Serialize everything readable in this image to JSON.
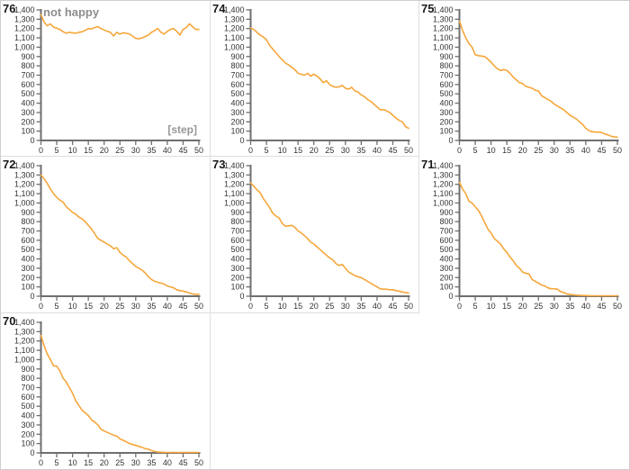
{
  "window": {
    "background": "#ffffff",
    "border_color": "#cfcfcf",
    "divider_color": "#dedede"
  },
  "style": {
    "line_color": "#f6a63b",
    "axis_color": "#6f6f6f",
    "tick_label_color": "#333333",
    "run_label_color": "#1a1a1a",
    "muted_label_color": "#8d8d8d"
  },
  "axes": {
    "xlim": [
      0,
      50
    ],
    "x_tick_step": 5,
    "ylim": [
      0,
      1400
    ],
    "y_tick_step": 100,
    "grid": "off",
    "legend": "none"
  },
  "chart_data": [
    {
      "type": "line",
      "title": "76",
      "annotation": "not happy",
      "x_axis_label": "[step]",
      "x_start": 0,
      "x_end": 50,
      "values": [
        1350,
        1270,
        1230,
        1250,
        1215,
        1205,
        1190,
        1165,
        1150,
        1160,
        1155,
        1150,
        1160,
        1165,
        1180,
        1200,
        1195,
        1210,
        1220,
        1200,
        1185,
        1170,
        1160,
        1120,
        1160,
        1140,
        1155,
        1150,
        1140,
        1120,
        1095,
        1090,
        1100,
        1115,
        1130,
        1160,
        1180,
        1200,
        1160,
        1140,
        1170,
        1190,
        1200,
        1170,
        1130,
        1190,
        1210,
        1250,
        1220,
        1190,
        1190
      ]
    },
    {
      "type": "line",
      "title": "74",
      "x_start": 0,
      "x_end": 50,
      "values": [
        1205,
        1190,
        1160,
        1130,
        1110,
        1080,
        1020,
        980,
        940,
        900,
        865,
        830,
        810,
        785,
        760,
        720,
        710,
        700,
        720,
        690,
        710,
        690,
        660,
        620,
        640,
        600,
        580,
        570,
        575,
        590,
        560,
        550,
        570,
        530,
        520,
        490,
        470,
        440,
        420,
        390,
        360,
        330,
        330,
        320,
        300,
        270,
        240,
        215,
        200,
        150,
        130
      ]
    },
    {
      "type": "line",
      "title": "75",
      "x_start": 0,
      "x_end": 50,
      "values": [
        1280,
        1180,
        1100,
        1040,
        1000,
        920,
        910,
        905,
        900,
        870,
        840,
        800,
        770,
        750,
        760,
        750,
        720,
        680,
        650,
        620,
        610,
        580,
        570,
        560,
        540,
        530,
        480,
        460,
        440,
        420,
        390,
        370,
        350,
        330,
        300,
        270,
        250,
        230,
        200,
        170,
        130,
        105,
        95,
        90,
        90,
        85,
        70,
        60,
        45,
        40,
        35
      ]
    },
    {
      "type": "line",
      "title": "72",
      "x_start": 0,
      "x_end": 50,
      "values": [
        1300,
        1260,
        1210,
        1150,
        1100,
        1060,
        1030,
        1010,
        960,
        930,
        900,
        880,
        850,
        830,
        800,
        760,
        720,
        670,
        620,
        600,
        580,
        560,
        540,
        510,
        520,
        470,
        440,
        420,
        380,
        350,
        320,
        300,
        280,
        250,
        210,
        180,
        160,
        150,
        140,
        130,
        110,
        100,
        90,
        70,
        60,
        55,
        45,
        35,
        25,
        20,
        20
      ]
    },
    {
      "type": "line",
      "title": "73",
      "x_start": 0,
      "x_end": 50,
      "values": [
        1215,
        1180,
        1140,
        1110,
        1050,
        1000,
        950,
        890,
        860,
        840,
        780,
        750,
        755,
        760,
        740,
        700,
        680,
        650,
        620,
        580,
        560,
        530,
        500,
        470,
        440,
        410,
        390,
        350,
        330,
        340,
        300,
        260,
        240,
        220,
        210,
        200,
        180,
        160,
        140,
        120,
        100,
        80,
        75,
        75,
        70,
        70,
        60,
        55,
        45,
        40,
        35
      ]
    },
    {
      "type": "line",
      "title": "71",
      "x_start": 0,
      "x_end": 50,
      "values": [
        1220,
        1150,
        1100,
        1020,
        1000,
        960,
        920,
        860,
        790,
        720,
        680,
        620,
        590,
        560,
        510,
        470,
        420,
        380,
        330,
        300,
        260,
        245,
        240,
        180,
        160,
        140,
        120,
        110,
        90,
        80,
        80,
        75,
        50,
        40,
        25,
        20,
        15,
        12,
        10,
        8,
        8,
        6,
        5,
        5,
        5,
        5,
        5,
        5,
        5,
        5,
        5
      ]
    },
    {
      "type": "line",
      "title": "70",
      "x_start": 0,
      "x_end": 50,
      "values": [
        1260,
        1150,
        1060,
        1000,
        935,
        930,
        880,
        800,
        760,
        700,
        640,
        560,
        510,
        460,
        430,
        400,
        355,
        330,
        300,
        255,
        235,
        220,
        205,
        190,
        180,
        150,
        135,
        120,
        100,
        90,
        80,
        70,
        60,
        45,
        40,
        25,
        15,
        10,
        8,
        6,
        5,
        5,
        5,
        5,
        5,
        5,
        5,
        5,
        5,
        5,
        5
      ]
    }
  ]
}
